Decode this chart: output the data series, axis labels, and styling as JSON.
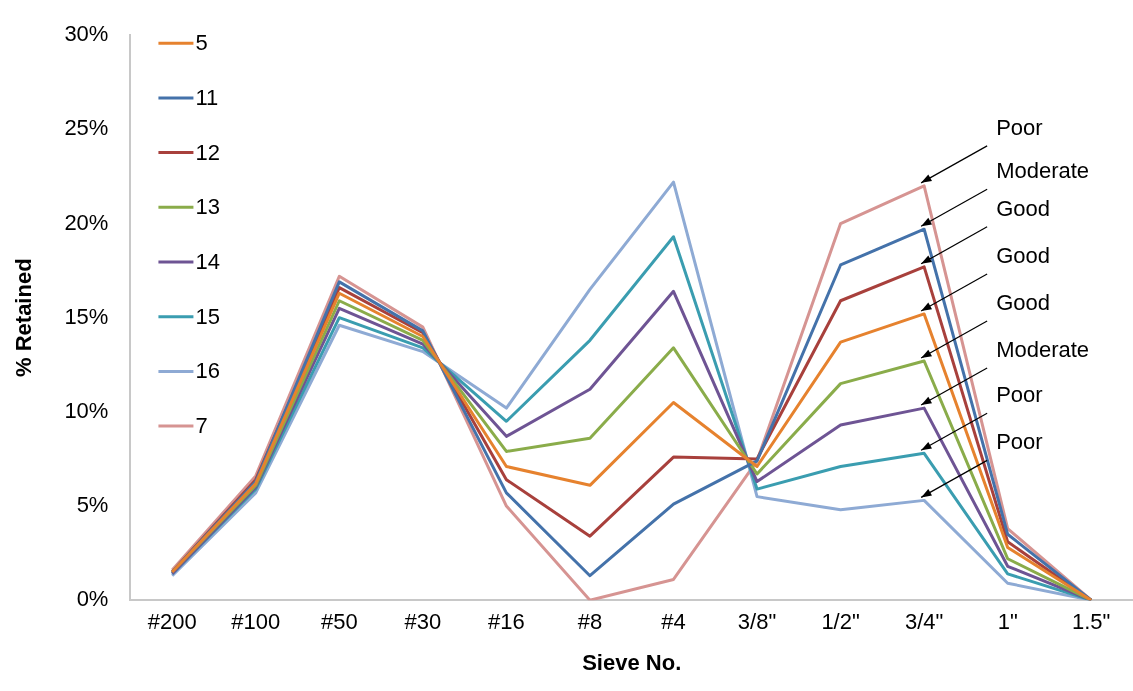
{
  "chart_data": {
    "type": "line",
    "xlabel": "Sieve No.",
    "ylabel": "% Retained",
    "categories": [
      "#200",
      "#100",
      "#50",
      "#30",
      "#16",
      "#8",
      "#4",
      "3/8\"",
      "1/2\"",
      "3/4\"",
      "1\"",
      "1.5\""
    ],
    "series": [
      {
        "name": "5",
        "color": "#e6822e",
        "values": [
          1.5,
          6.2,
          16.3,
          14.0,
          7.1,
          6.1,
          10.5,
          7.1,
          13.7,
          15.2,
          2.8,
          0
        ]
      },
      {
        "name": "11",
        "color": "#4472aa",
        "values": [
          1.5,
          6.3,
          16.9,
          14.3,
          5.7,
          1.3,
          5.1,
          7.4,
          17.8,
          19.7,
          3.5,
          0
        ]
      },
      {
        "name": "12",
        "color": "#a8403c",
        "values": [
          1.5,
          6.4,
          16.6,
          14.2,
          6.4,
          3.4,
          7.6,
          7.5,
          15.9,
          17.7,
          3.1,
          0
        ]
      },
      {
        "name": "13",
        "color": "#8aac4a",
        "values": [
          1.5,
          6.1,
          15.9,
          13.8,
          7.9,
          8.6,
          13.4,
          6.7,
          11.5,
          12.7,
          2.2,
          0
        ]
      },
      {
        "name": "14",
        "color": "#6e5494",
        "values": [
          1.4,
          6.0,
          15.5,
          13.6,
          8.7,
          11.2,
          16.4,
          6.3,
          9.3,
          10.2,
          1.8,
          0
        ]
      },
      {
        "name": "15",
        "color": "#3a9db0",
        "values": [
          1.4,
          5.9,
          15.0,
          13.4,
          9.5,
          13.8,
          19.3,
          5.9,
          7.1,
          7.8,
          1.4,
          0
        ]
      },
      {
        "name": "16",
        "color": "#8eaad4",
        "values": [
          1.3,
          5.7,
          14.6,
          13.2,
          10.2,
          16.5,
          22.2,
          5.5,
          4.8,
          5.3,
          0.9,
          0
        ]
      },
      {
        "name": "7",
        "color": "#d69492",
        "values": [
          1.6,
          6.6,
          17.2,
          14.5,
          5.0,
          0,
          1.1,
          7.4,
          20.0,
          22.0,
          3.8,
          0
        ]
      }
    ],
    "ylim": [
      0,
      30
    ],
    "yticks": [
      {
        "value": 0,
        "label": "0%"
      },
      {
        "value": 5,
        "label": "5%"
      },
      {
        "value": 10,
        "label": "10%"
      },
      {
        "value": 15,
        "label": "15%"
      },
      {
        "value": 20,
        "label": "20%"
      },
      {
        "value": 25,
        "label": "25%"
      },
      {
        "value": 30,
        "label": "30%"
      }
    ],
    "grid": false,
    "legend": "top left",
    "marker": "none",
    "line_style": "solid",
    "annotations": [
      {
        "text": "Poor",
        "x": "3/4\"",
        "y": 22.0
      },
      {
        "text": "Moderate",
        "x": "3/4\"",
        "y": 19.7
      },
      {
        "text": "Good",
        "x": "3/4\"",
        "y": 17.7
      },
      {
        "text": "Good",
        "x": "3/4\"",
        "y": 15.2
      },
      {
        "text": "Good",
        "x": "3/4\"",
        "y": 12.7
      },
      {
        "text": "Moderate",
        "x": "3/4\"",
        "y": 10.2
      },
      {
        "text": "Poor",
        "x": "3/4\"",
        "y": 7.8
      },
      {
        "text": "Poor",
        "x": "3/4\"",
        "y": 5.3
      }
    ]
  }
}
